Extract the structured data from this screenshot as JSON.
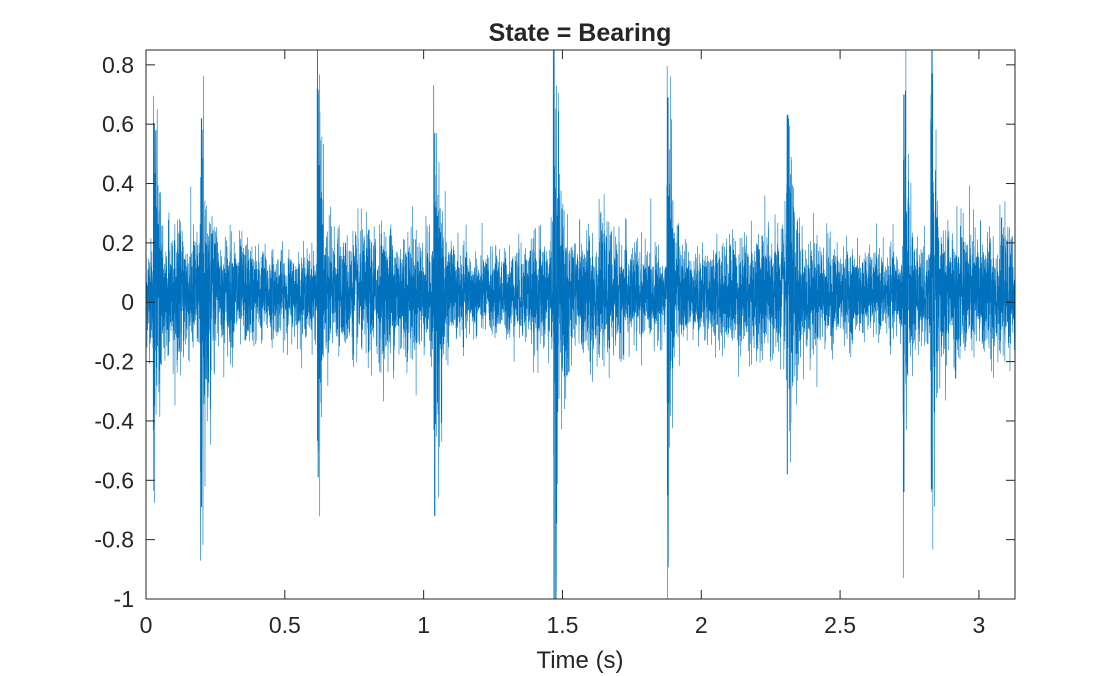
{
  "chart_data": {
    "type": "line",
    "title": "State = Bearing",
    "xlabel": "Time (s)",
    "ylabel": "",
    "xlim": [
      0,
      3.13
    ],
    "ylim": [
      -1,
      0.85
    ],
    "xticks": [
      0,
      0.5,
      1,
      1.5,
      2,
      2.5,
      3
    ],
    "xtick_labels": [
      "0",
      "0.5",
      "1",
      "1.5",
      "2",
      "2.5",
      "3"
    ],
    "yticks": [
      0.8,
      0.6,
      0.4,
      0.2,
      0,
      -0.2,
      -0.4,
      -0.6,
      -0.8,
      -1
    ],
    "ytick_labels": [
      "0.8",
      "0.6",
      "0.4",
      "0.2",
      "0",
      "-0.2",
      "-0.4",
      "-0.6",
      "-0.8",
      "-1"
    ],
    "grid": false,
    "series": [
      {
        "color": "#0072BD",
        "baseline_offset": 0.03,
        "noise_amplitude": 0.11,
        "impulse_times": [
          0.03,
          0.2,
          0.62,
          1.04,
          1.47,
          1.88,
          2.31,
          2.73,
          2.83
        ],
        "impulse_peaks_max": [
          0.6,
          0.62,
          0.7,
          0.57,
          0.85,
          0.69,
          0.63,
          0.7,
          0.6
        ],
        "impulse_peaks_min": [
          -0.35,
          -0.69,
          -0.59,
          -0.72,
          -1.0,
          -0.65,
          -0.58,
          -0.64,
          -0.63
        ]
      }
    ]
  }
}
